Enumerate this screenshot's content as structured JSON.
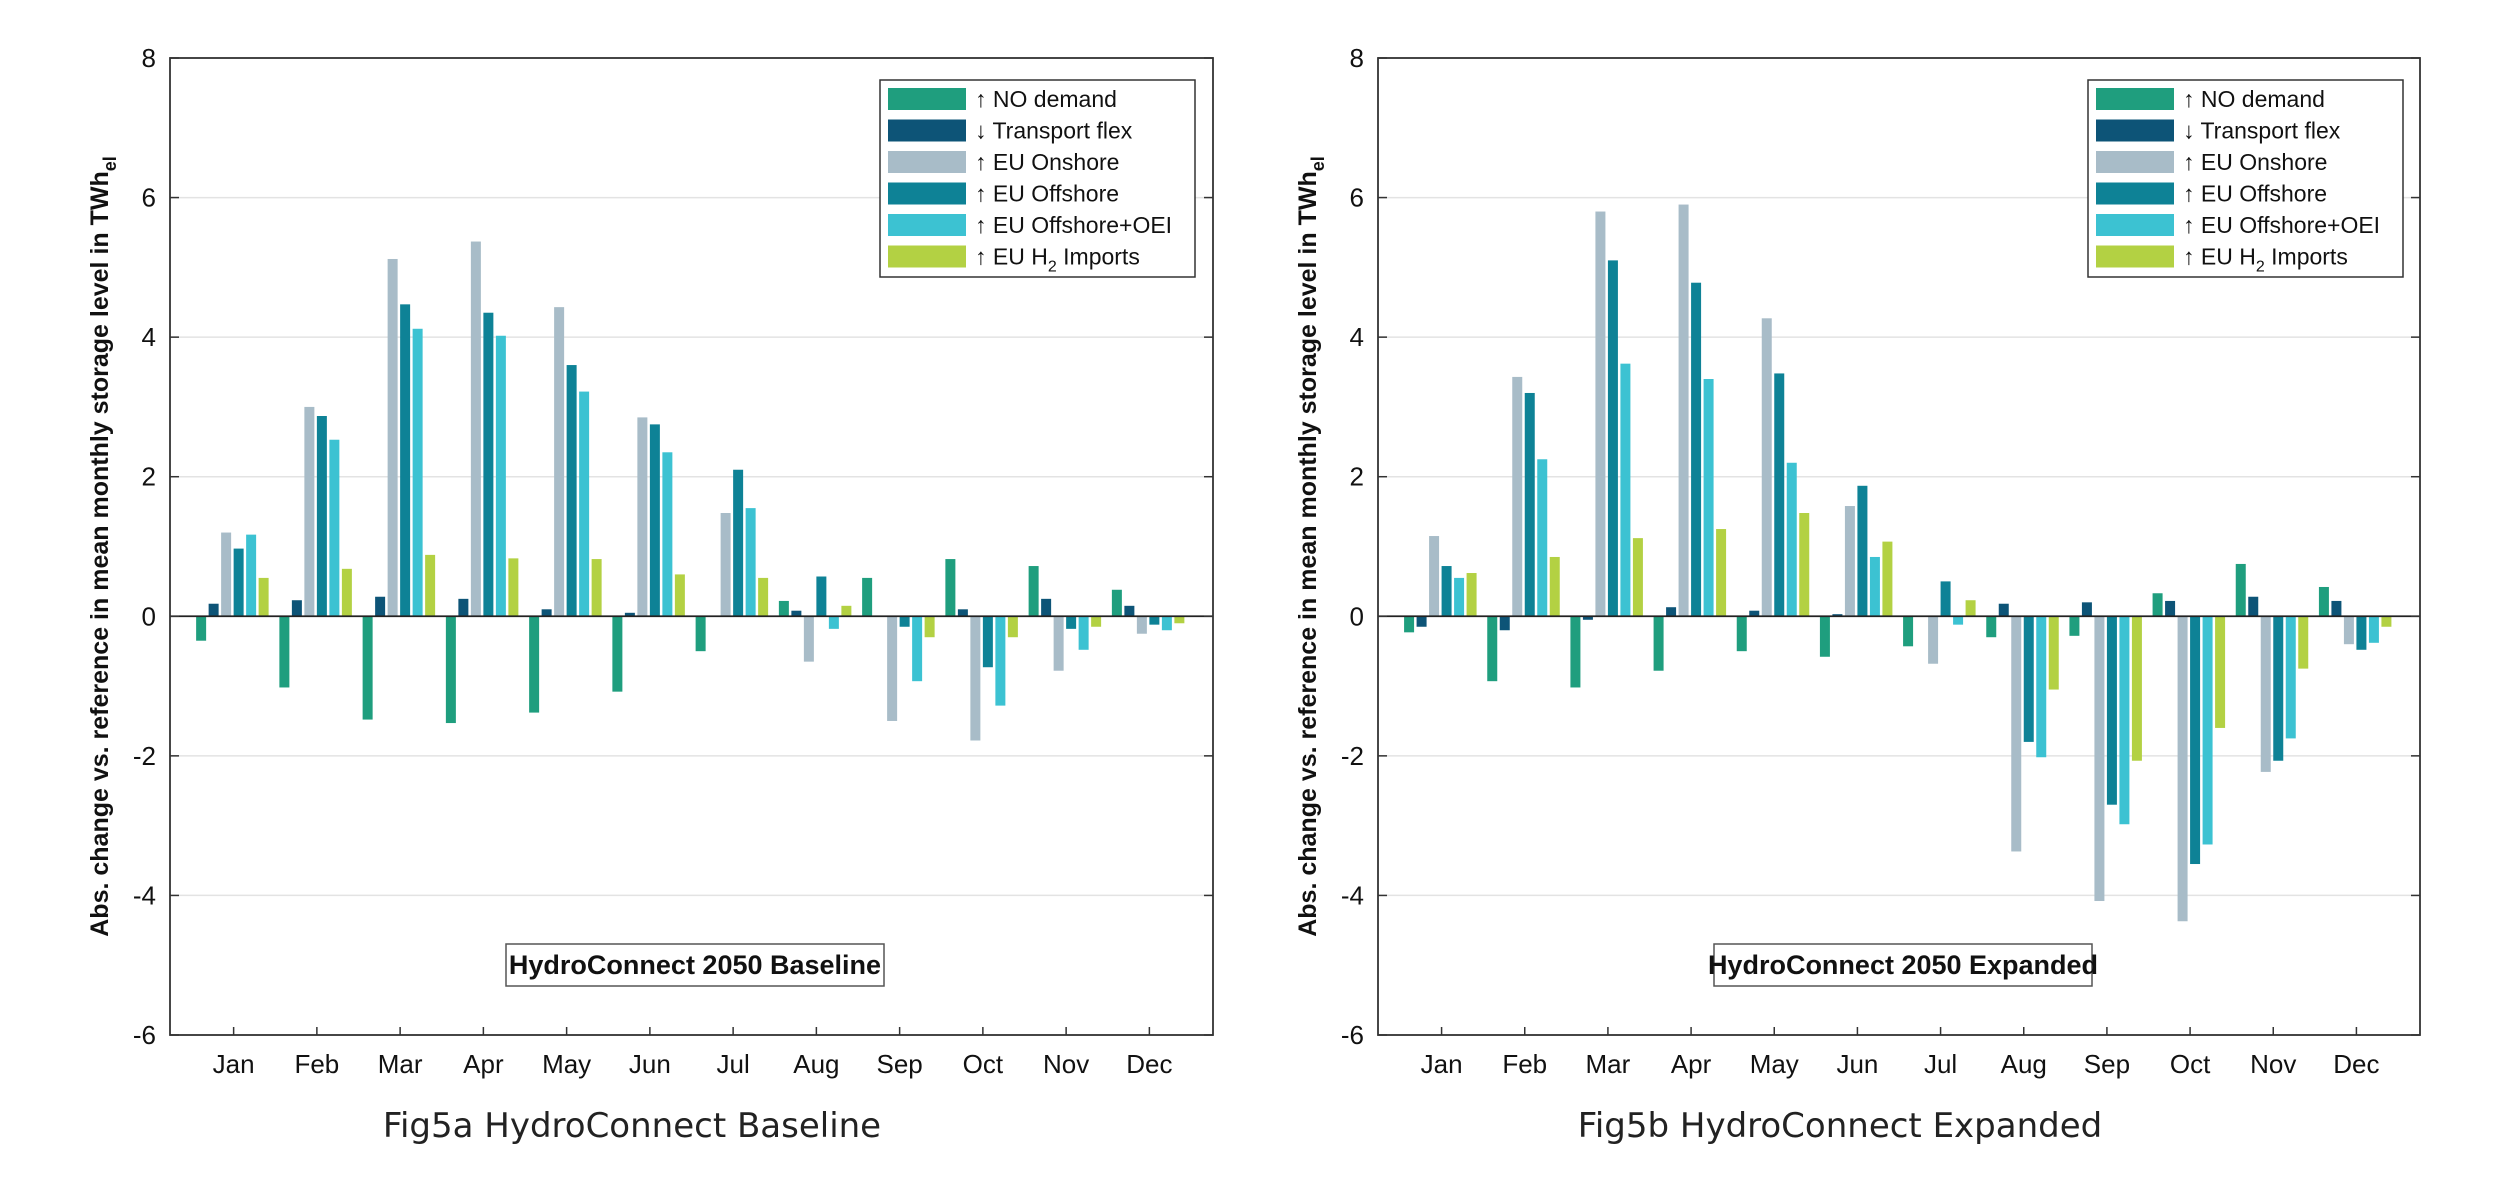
{
  "months": [
    "Jan",
    "Feb",
    "Mar",
    "Apr",
    "May",
    "Jun",
    "Jul",
    "Aug",
    "Sep",
    "Oct",
    "Nov",
    "Dec"
  ],
  "legend_entries": [
    {
      "key": "no_demand",
      "prefix": "↑ ",
      "label": "NO demand",
      "sub": "",
      "rest": "",
      "color": "#1f9e7e"
    },
    {
      "key": "transport_flex",
      "prefix": "↓ ",
      "label": "Transport flex",
      "sub": "",
      "rest": "",
      "color": "#0d5477"
    },
    {
      "key": "eu_onshore",
      "prefix": "↑ ",
      "label": "EU Onshore",
      "sub": "",
      "rest": "",
      "color": "#a8bcc8"
    },
    {
      "key": "eu_offshore",
      "prefix": "↑ ",
      "label": "EU Offshore",
      "sub": "",
      "rest": "",
      "color": "#0e8296"
    },
    {
      "key": "eu_offshore_oei",
      "prefix": "↑ ",
      "label": "EU Offshore+OEI",
      "sub": "",
      "rest": "",
      "color": "#3cc2d2"
    },
    {
      "key": "eu_h2_imports",
      "prefix": "↑ ",
      "label": "EU H",
      "sub": "2",
      "rest": " Imports",
      "color": "#b3d143"
    }
  ],
  "chart_data": [
    {
      "type": "bar",
      "id": "fig5a",
      "caption": "Fig5a HydroConnect Baseline",
      "annotation": "HydroConnect 2050 Baseline",
      "ylabel_main": "Abs. change vs. reference in mean monthly storage level in TWh",
      "ylabel_sub": "el",
      "xlabel": "",
      "ylim": [
        -6,
        8
      ],
      "yticks": [
        -6,
        -4,
        -2,
        0,
        2,
        4,
        6,
        8
      ],
      "grid": "horizontal",
      "legend_position": "top-right",
      "categories": [
        "Jan",
        "Feb",
        "Mar",
        "Apr",
        "May",
        "Jun",
        "Jul",
        "Aug",
        "Sep",
        "Oct",
        "Nov",
        "Dec"
      ],
      "series": [
        {
          "name": "↑ NO demand",
          "color": "#1f9e7e",
          "values": [
            -0.35,
            -1.02,
            -1.48,
            -1.53,
            -1.38,
            -1.08,
            -0.5,
            0.22,
            0.55,
            0.82,
            0.72,
            0.38
          ]
        },
        {
          "name": "↓ Transport flex",
          "color": "#0d5477",
          "values": [
            0.18,
            0.23,
            0.28,
            0.25,
            0.1,
            0.05,
            0.0,
            0.08,
            0.0,
            0.1,
            0.25,
            0.15
          ]
        },
        {
          "name": "↑ EU Onshore",
          "color": "#a8bcc8",
          "values": [
            1.2,
            3.0,
            5.12,
            5.37,
            4.43,
            2.85,
            1.48,
            -0.65,
            -1.5,
            -1.78,
            -0.78,
            -0.25
          ]
        },
        {
          "name": "↑ EU Offshore",
          "color": "#0e8296",
          "values": [
            0.97,
            2.87,
            4.47,
            4.35,
            3.6,
            2.75,
            2.1,
            0.57,
            -0.15,
            -0.73,
            -0.18,
            -0.12
          ]
        },
        {
          "name": "↑ EU Offshore+OEI",
          "color": "#3cc2d2",
          "values": [
            1.17,
            2.53,
            4.12,
            4.02,
            3.22,
            2.35,
            1.55,
            -0.18,
            -0.93,
            -1.28,
            -0.48,
            -0.2
          ]
        },
        {
          "name": "↑ EU H2 Imports",
          "color": "#b3d143",
          "values": [
            0.55,
            0.68,
            0.88,
            0.83,
            0.82,
            0.6,
            0.55,
            0.15,
            -0.3,
            -0.3,
            -0.15,
            -0.1
          ]
        }
      ]
    },
    {
      "type": "bar",
      "id": "fig5b",
      "caption": "Fig5b HydroConnect Expanded",
      "annotation": "HydroConnect 2050 Expanded",
      "ylabel_main": "Abs. change vs. reference in mean monthly storage level in TWh",
      "ylabel_sub": "el",
      "xlabel": "",
      "ylim": [
        -6,
        8
      ],
      "yticks": [
        -6,
        -4,
        -2,
        0,
        2,
        4,
        6,
        8
      ],
      "grid": "horizontal",
      "legend_position": "top-right",
      "categories": [
        "Jan",
        "Feb",
        "Mar",
        "Apr",
        "May",
        "Jun",
        "Jul",
        "Aug",
        "Sep",
        "Oct",
        "Nov",
        "Dec"
      ],
      "series": [
        {
          "name": "↑ NO demand",
          "color": "#1f9e7e",
          "values": [
            -0.23,
            -0.93,
            -1.02,
            -0.78,
            -0.5,
            -0.58,
            -0.43,
            -0.3,
            -0.28,
            0.33,
            0.75,
            0.42
          ]
        },
        {
          "name": "↓ Transport flex",
          "color": "#0d5477",
          "values": [
            -0.15,
            -0.2,
            -0.05,
            0.13,
            0.08,
            0.03,
            0.0,
            0.18,
            0.2,
            0.22,
            0.28,
            0.22
          ]
        },
        {
          "name": "↑ EU Onshore",
          "color": "#a8bcc8",
          "values": [
            1.15,
            3.43,
            5.8,
            5.9,
            4.27,
            1.58,
            -0.68,
            -3.37,
            -4.08,
            -4.37,
            -2.23,
            -0.4
          ]
        },
        {
          "name": "↑ EU Offshore",
          "color": "#0e8296",
          "values": [
            0.72,
            3.2,
            5.1,
            4.78,
            3.48,
            1.87,
            0.5,
            -1.8,
            -2.7,
            -3.55,
            -2.07,
            -0.48
          ]
        },
        {
          "name": "↑ EU Offshore+OEI",
          "color": "#3cc2d2",
          "values": [
            0.55,
            2.25,
            3.62,
            3.4,
            2.2,
            0.85,
            -0.12,
            -2.02,
            -2.98,
            -3.27,
            -1.75,
            -0.38
          ]
        },
        {
          "name": "↑ EU H2 Imports",
          "color": "#b3d143",
          "values": [
            0.62,
            0.85,
            1.12,
            1.25,
            1.48,
            1.07,
            0.23,
            -1.05,
            -2.07,
            -1.6,
            -0.75,
            -0.15
          ]
        }
      ]
    }
  ]
}
